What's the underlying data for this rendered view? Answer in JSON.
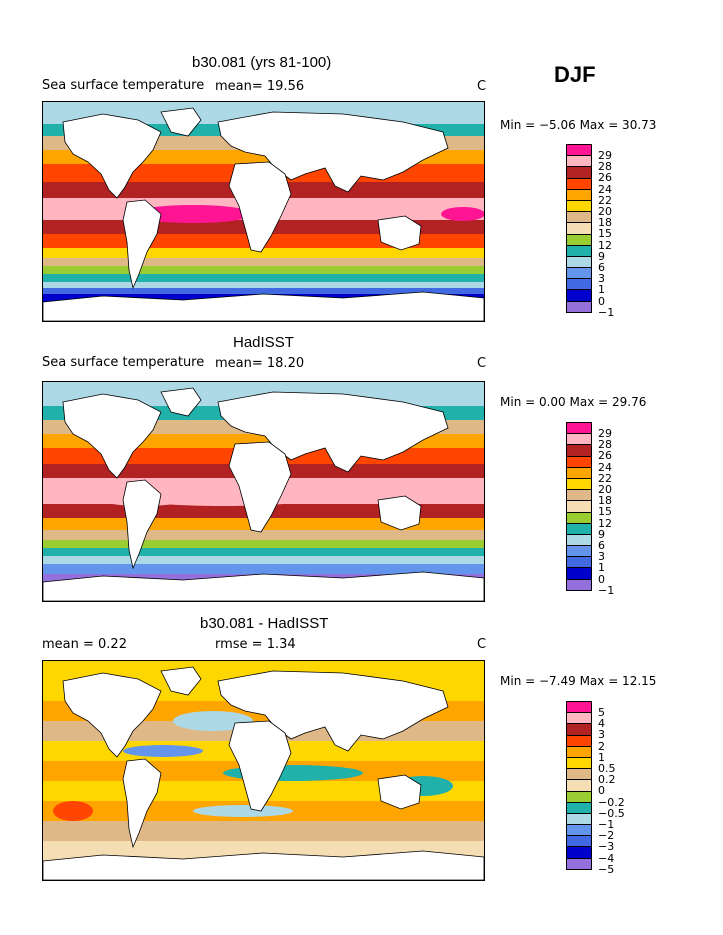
{
  "season": "DJF",
  "panels": [
    {
      "title": "b30.081 (yrs 81-100)",
      "left_label": "Sea surface temperature",
      "stat": "mean=   19.56",
      "units": "C",
      "minmax": "Min =   −5.06 Max =   30.73",
      "colorbar_labels": [
        "29",
        "28",
        "26",
        "24",
        "22",
        "20",
        "18",
        "15",
        "12",
        "9",
        "6",
        "3",
        "1",
        "0",
        "−1"
      ]
    },
    {
      "title": "HadISST",
      "left_label": "Sea surface temperature",
      "stat": "mean=   18.20",
      "units": "C",
      "minmax": "Min =    0.00 Max =   29.76",
      "colorbar_labels": [
        "29",
        "28",
        "26",
        "24",
        "22",
        "20",
        "18",
        "15",
        "12",
        "9",
        "6",
        "3",
        "1",
        "0",
        "−1"
      ]
    },
    {
      "title": "b30.081 - HadISST",
      "left_label": "mean =    0.22",
      "stat": "rmse =    1.34",
      "units": "C",
      "minmax": "Min =   −7.49 Max =   12.15",
      "colorbar_labels": [
        "5",
        "4",
        "3",
        "2",
        "1",
        "0.5",
        "0.2",
        "0",
        "−0.2",
        "−0.5",
        "−1",
        "−2",
        "−3",
        "−4",
        "−5"
      ]
    }
  ],
  "colors": {
    "palette": [
      "#ff1493",
      "#ffb6c1",
      "#b22222",
      "#ff4500",
      "#ffa500",
      "#ffd700",
      "#deb887",
      "#f5deb3",
      "#9acd32",
      "#20b2aa",
      "#add8e6",
      "#6495ed",
      "#4169e1",
      "#0000cd",
      "#9370db"
    ],
    "land": "#ffffff",
    "coast": "#000000"
  }
}
